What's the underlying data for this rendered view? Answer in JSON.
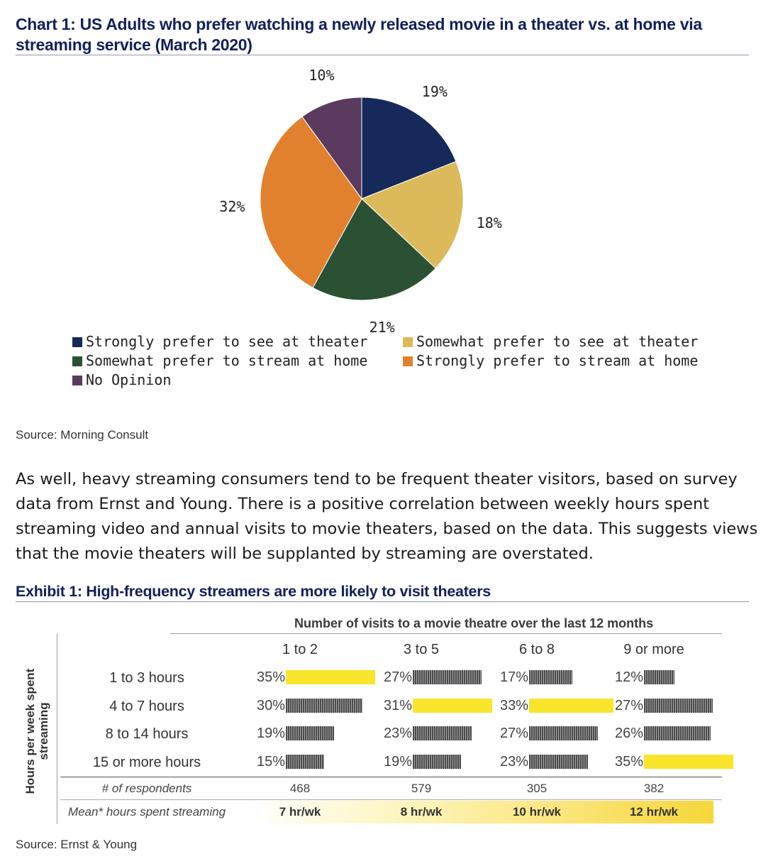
{
  "chart1": {
    "title": "Chart 1: US Adults who prefer watching a newly released movie in a theater vs. at home via streaming service (March 2020)",
    "source": "Source: Morning Consult"
  },
  "paragraph": "As well, heavy streaming consumers tend to be frequent theater visitors, based on survey data from Ernst and Young. There is a positive correlation between weekly hours spent streaming video and annual visits to movie theaters, based on the data. This suggests views that the movie theaters will be supplanted by streaming are overstated.",
  "exhibit1": {
    "title": "Exhibit 1: High-frequency streamers are more likely to visit theaters",
    "source": "Source: Ernst & Young"
  },
  "chart_data": [
    {
      "type": "pie",
      "slices": [
        {
          "name": "Strongly prefer to see at theater",
          "value": 19,
          "label": "19%",
          "color": "#15295a"
        },
        {
          "name": "Somewhat prefer to see at theater",
          "value": 18,
          "label": "18%",
          "color": "#dcb95a"
        },
        {
          "name": "Somewhat prefer to stream at home",
          "value": 21,
          "label": "21%",
          "color": "#2b5134"
        },
        {
          "name": "Strongly prefer to stream at home",
          "value": 32,
          "label": "32%",
          "color": "#e2812d"
        },
        {
          "name": "No Opinion",
          "value": 10,
          "label": "10%",
          "color": "#5a3a5e"
        }
      ],
      "legend_order": [
        0,
        1,
        2,
        3,
        4
      ]
    },
    {
      "type": "table",
      "column_title": "Number of visits to a movie theatre over the last 12 months",
      "row_title": "Hours per week spent streaming",
      "columns": [
        "1 to 2",
        "3 to 5",
        "6 to 8",
        "9 or more"
      ],
      "rows": [
        "1 to 3 hours",
        "4 to 7 hours",
        "8 to 14 hours",
        "15 or more hours"
      ],
      "values": [
        [
          35,
          27,
          17,
          12
        ],
        [
          30,
          31,
          33,
          27
        ],
        [
          19,
          23,
          27,
          26
        ],
        [
          15,
          19,
          23,
          35
        ]
      ],
      "highlight": [
        [
          0,
          0
        ],
        [
          1,
          1
        ],
        [
          1,
          2
        ],
        [
          3,
          3
        ]
      ],
      "colors": {
        "highlight": "#f8e52c",
        "bar": "#4b4b4b"
      },
      "respondents_label": "# of respondents",
      "respondents": [
        "468",
        "579",
        "305",
        "382"
      ],
      "mean_label": "Mean* hours spent streaming",
      "mean_hours": [
        "7 hr/wk",
        "8 hr/wk",
        "10 hr/wk",
        "12 hr/wk"
      ]
    }
  ]
}
